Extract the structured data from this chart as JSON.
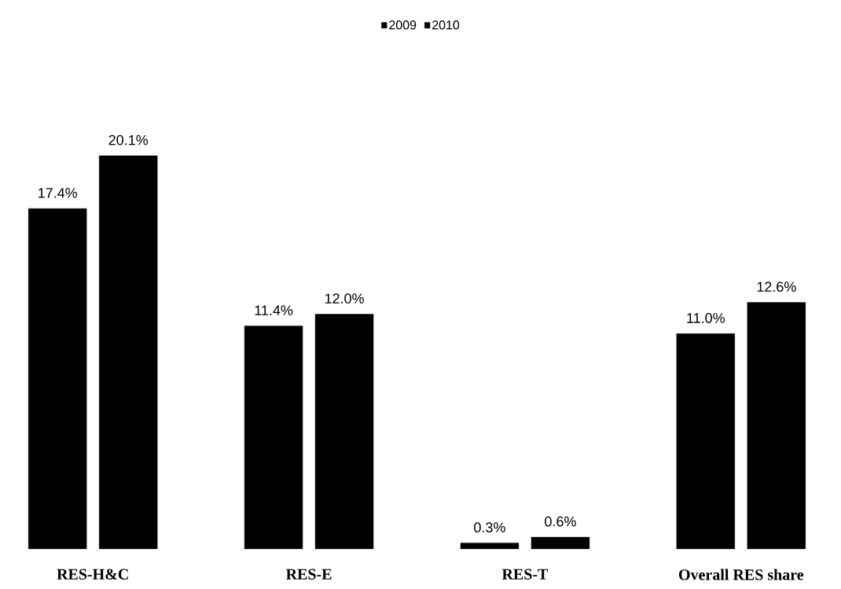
{
  "chart_data": {
    "type": "bar",
    "categories": [
      "RES-H&C",
      "RES-E",
      "RES-T",
      "Overall RES share"
    ],
    "series": [
      {
        "name": "2009",
        "color": "#000000",
        "values": [
          17.4,
          11.4,
          0.3,
          11.0
        ],
        "value_labels": [
          "17.4%",
          "11.4%",
          "0.3%",
          "11.0%"
        ]
      },
      {
        "name": "2010",
        "color": "#000000",
        "values": [
          20.1,
          12.0,
          0.6,
          12.6
        ],
        "value_labels": [
          "20.1%",
          "12.0%",
          "0.6%",
          "12.6%"
        ]
      }
    ],
    "legend": "top",
    "grid": false
  }
}
